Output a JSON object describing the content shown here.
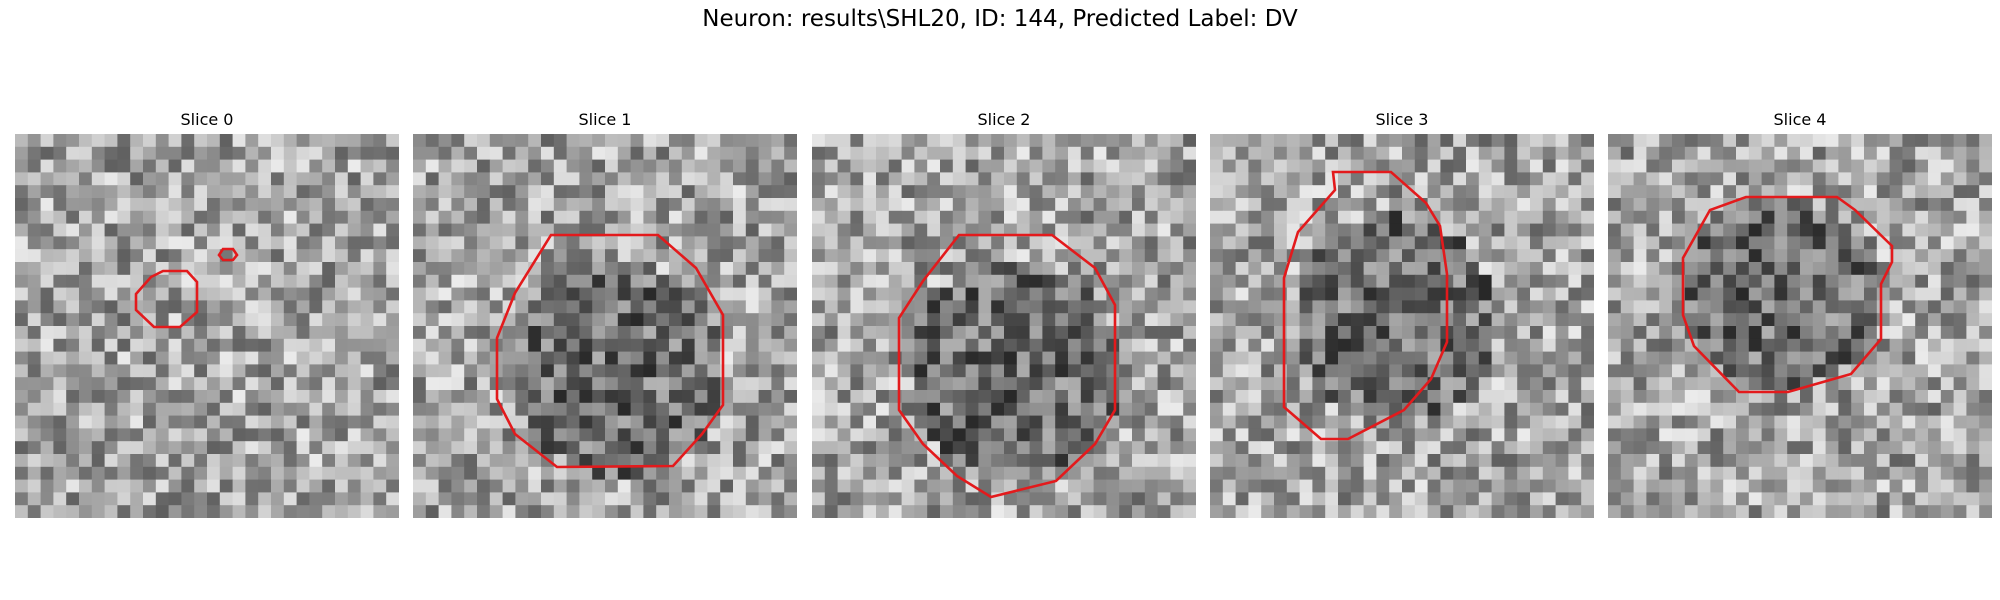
{
  "figure": {
    "title": "Neuron: results\\SHL20, ID: 144, Predicted Label: DV"
  },
  "panels": [
    {
      "title": "Slice 0"
    },
    {
      "title": "Slice 1"
    },
    {
      "title": "Slice 2"
    },
    {
      "title": "Slice 3"
    },
    {
      "title": "Slice 4"
    }
  ],
  "colors": {
    "background": "#ffffff",
    "contour": "#e31a1c",
    "image_colormap": "grayscale"
  }
}
